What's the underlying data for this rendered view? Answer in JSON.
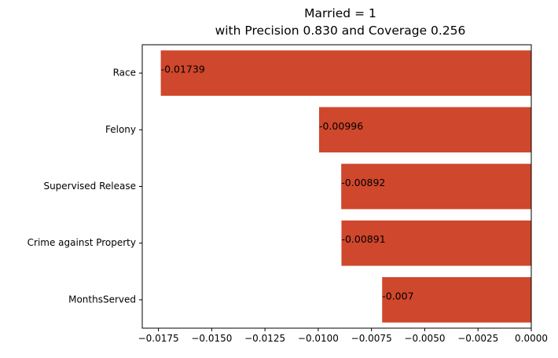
{
  "chart_data": {
    "type": "bar",
    "orientation": "horizontal",
    "title": "Married = 1",
    "subtitle": "with Precision 0.830 and Coverage 0.256",
    "xlabel": "",
    "ylabel": "",
    "categories": [
      "Race",
      "Felony",
      "Supervised Release",
      "Crime against Property",
      "MonthsServed"
    ],
    "values": [
      -0.01739,
      -0.00996,
      -0.00892,
      -0.00891,
      -0.007
    ],
    "data_labels": [
      "-0.01739",
      "-0.00996",
      "-0.00892",
      "-0.00891",
      "-0.007"
    ],
    "xlim": [
      -0.01826,
      0.0
    ],
    "xticks": [
      -0.0175,
      -0.015,
      -0.0125,
      -0.01,
      -0.0075,
      -0.005,
      -0.0025,
      0.0
    ],
    "xtick_labels": [
      "−0.0175",
      "−0.0150",
      "−0.0125",
      "−0.0100",
      "−0.0075",
      "−0.0050",
      "−0.0025",
      "0.0000"
    ],
    "bar_color": "#cf472c",
    "grid": false,
    "legend": "none"
  }
}
